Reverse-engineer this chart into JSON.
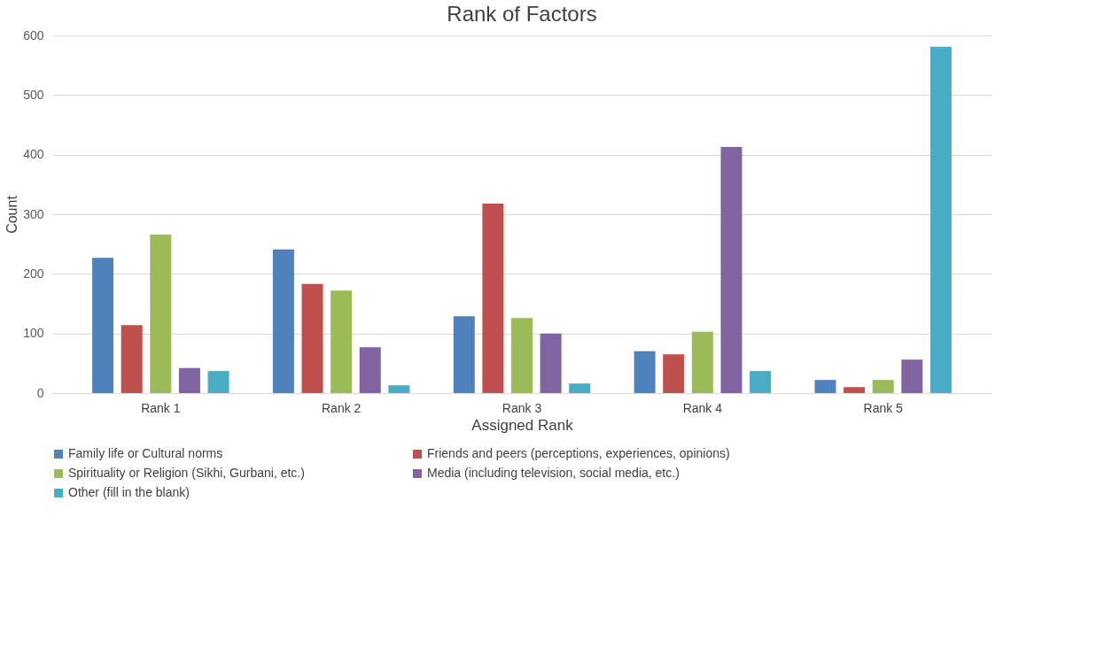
{
  "chart_data": {
    "type": "bar",
    "title": "Rank of Factors",
    "xlabel": "Assigned Rank",
    "ylabel": "Count",
    "categories": [
      "Rank 1",
      "Rank 2",
      "Rank 3",
      "Rank 4",
      "Rank 5"
    ],
    "series": [
      {
        "name": "Family life or Cultural norms",
        "color": "#4f81bd",
        "values": [
          227,
          241,
          129,
          70,
          22
        ]
      },
      {
        "name": "Friends and peers (perceptions, experiences, opinions)",
        "color": "#c0504d",
        "values": [
          114,
          183,
          318,
          65,
          10
        ]
      },
      {
        "name": "Spirituality or Religion (Sikhi, Gurbani, etc.)",
        "color": "#9bbb59",
        "values": [
          266,
          172,
          126,
          103,
          22
        ]
      },
      {
        "name": "Media (including television, social media, etc.)",
        "color": "#8064a2",
        "values": [
          42,
          77,
          100,
          413,
          56
        ]
      },
      {
        "name": "Other (fill in the blank)",
        "color": "#4bacc6",
        "values": [
          37,
          13,
          16,
          37,
          581
        ]
      }
    ],
    "ylim": [
      0,
      600
    ],
    "yticks": [
      0,
      100,
      200,
      300,
      400,
      500,
      600
    ],
    "grid": "y",
    "legend": "bottom"
  }
}
